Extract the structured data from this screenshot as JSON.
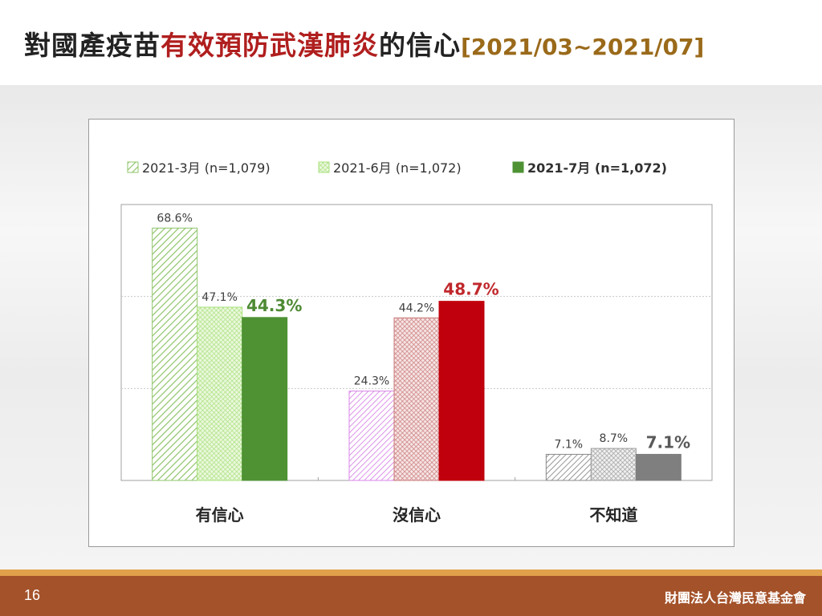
{
  "slide": {
    "title_part1": "對國產疫苗",
    "title_part2": "有效預防武漢肺炎",
    "title_part3": "的信心",
    "title_period": "[2021/03~2021/07]",
    "page_number": "16",
    "organization": "財團法人台灣民意基金會"
  },
  "chart_data": {
    "type": "bar",
    "categories": [
      "有信心",
      "沒信心",
      "不知道"
    ],
    "series": [
      {
        "name": "2021-3月 (n=1,079)",
        "values": [
          68.6,
          24.3,
          7.1
        ],
        "labels": [
          "68.6%",
          "24.3%",
          "7.1%"
        ]
      },
      {
        "name": "2021-6月  (n=1,072)",
        "values": [
          47.1,
          44.2,
          8.7
        ],
        "labels": [
          "47.1%",
          "44.2%",
          "8.7%"
        ]
      },
      {
        "name": "2021-7月  (n=1,072)",
        "values": [
          44.3,
          48.7,
          7.1
        ],
        "labels": [
          "44.3%",
          "48.7%",
          "7.1%"
        ]
      }
    ],
    "ylim": [
      0,
      75
    ],
    "grid": true,
    "legend_position": "top",
    "colors": {
      "confident_light": "#8fc46a",
      "confident_mid": "#a8e07c",
      "confident_dark": "#4e9234",
      "not_confident_light": "#d987e8",
      "not_confident_mid": "#c97878",
      "not_confident_dark": "#c0000c",
      "unknown_light": "#8a8a8a",
      "unknown_mid": "#9a9a9a",
      "unknown_dark": "#7f7f7f",
      "label_green": "#4e8a34",
      "label_red": "#c0282c",
      "label_gray": "#595959"
    }
  }
}
